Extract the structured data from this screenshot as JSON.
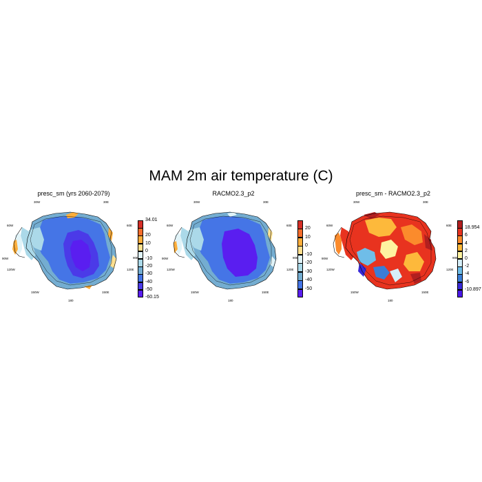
{
  "title": "MAM 2m air temperature (C)",
  "lon_labels": [
    "30W",
    "30E",
    "60W",
    "60E",
    "90W",
    "90E",
    "120W",
    "120E",
    "150W",
    "150E",
    "180"
  ],
  "colors": {
    "coast": "#000000",
    "background": "#ffffff"
  },
  "panels": [
    {
      "title": "presc_sm (yrs 2060-2079)",
      "colorbar": {
        "labels": [
          "34.01",
          "20",
          "10",
          "0",
          "-10",
          "-20",
          "-30",
          "-40",
          "-50",
          "-60.15"
        ],
        "colors": [
          "#d62f27",
          "#f46d2b",
          "#fdae3b",
          "#fee090",
          "#e0f3f8",
          "#abd9e9",
          "#74add1",
          "#4575e6",
          "#4b3ae8",
          "#5a1ef0"
        ]
      }
    },
    {
      "title": "RACMO2.3_p2",
      "colorbar": {
        "labels": [
          "20",
          "10",
          "0",
          "-10",
          "-20",
          "-30",
          "-40",
          "-50"
        ],
        "colors": [
          "#d62f27",
          "#f46d2b",
          "#fdae3b",
          "#fee090",
          "#e0f3f8",
          "#abd9e9",
          "#74add1",
          "#4575e6",
          "#5a1ef0"
        ]
      }
    },
    {
      "title": "presc_sm - RACMO2.3_p2",
      "colorbar": {
        "labels": [
          "18.954",
          "6",
          "4",
          "2",
          "0",
          "-2",
          "-4",
          "-6",
          "-10.897"
        ],
        "colors": [
          "#b21f1f",
          "#e8331f",
          "#fb8b2c",
          "#fdb93b",
          "#fef3a0",
          "#d6effa",
          "#6fbde8",
          "#3b7dd6",
          "#3a2ad8",
          "#4a18e8"
        ]
      }
    }
  ]
}
